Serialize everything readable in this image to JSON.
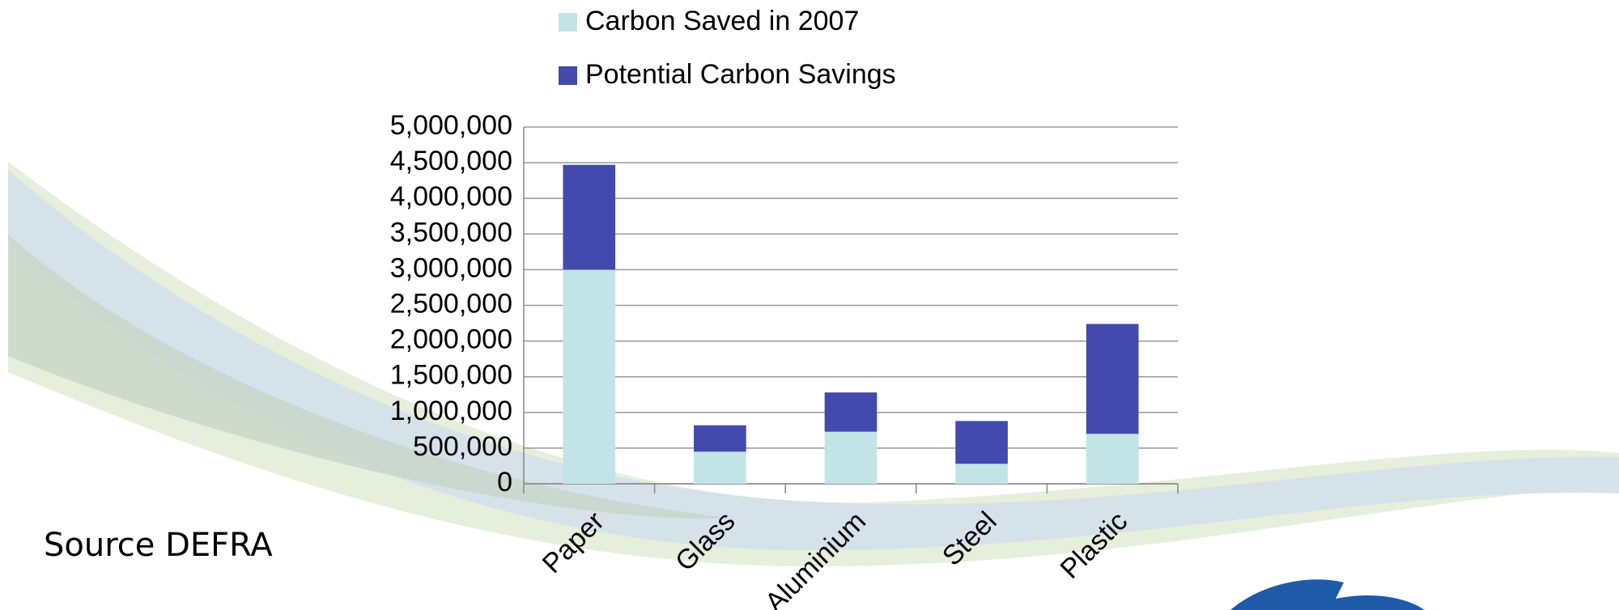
{
  "chart_data": {
    "type": "stacked-bar",
    "categories": [
      "Paper",
      "Glass",
      "Aluminium",
      "Steel",
      "Plastic"
    ],
    "series": [
      {
        "name": "Carbon Saved in 2007",
        "color": "#c3e4e6",
        "values": [
          3000000,
          450000,
          730000,
          280000,
          700000
        ]
      },
      {
        "name": "Potential Carbon Savings",
        "color": "#444aad",
        "values": [
          1470000,
          370000,
          550000,
          600000,
          1540000
        ]
      }
    ],
    "ylim": [
      0,
      5000000
    ],
    "yticks": [
      0,
      {
        "value": 500000,
        "label": "500,000"
      },
      {
        "value": 1000000,
        "label": "1,000,000"
      },
      {
        "value": 1500000,
        "label": "1,500,000"
      },
      {
        "value": 2000000,
        "label": "2,000,000"
      },
      {
        "value": 2500000,
        "label": "2,500,000"
      },
      {
        "value": 3000000,
        "label": "3,000,000"
      },
      {
        "value": 3500000,
        "label": "3,500,000"
      },
      {
        "value": 4000000,
        "label": "4,000,000"
      },
      {
        "value": 4500000,
        "label": "4,500,000"
      },
      {
        "value": 5000000,
        "label": "5,000,000"
      }
    ],
    "grid": true,
    "legend": "top",
    "source": "Source DEFRA"
  }
}
